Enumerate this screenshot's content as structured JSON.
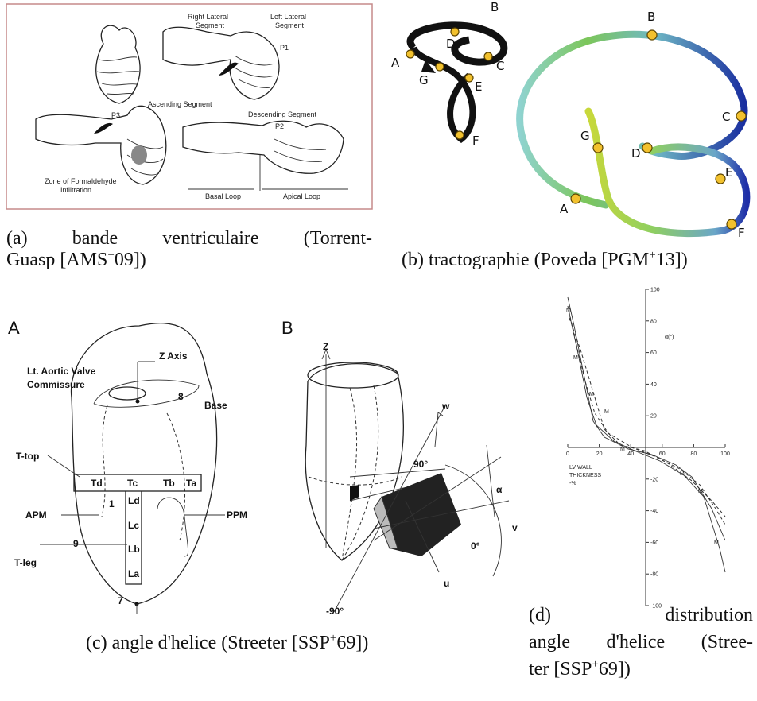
{
  "panel_a": {
    "labels": {
      "right_lateral": [
        "Right Lateral",
        "Segment"
      ],
      "left_lateral": [
        "Left Lateral",
        "Segment"
      ],
      "p1": "P1",
      "p3": "P3",
      "ascending": "Ascending Segment",
      "descending": "Descending Segment",
      "p2": "P2",
      "zone": [
        "Zone of Formaldehyde",
        "Infiltration"
      ],
      "basal_loop": "Basal Loop",
      "apical_loop": "Apical Loop"
    },
    "caption": {
      "line1": "(a) bande ventriculaire (Torrent-",
      "line2": "Guasp [AMS",
      "sup": "+",
      "line2_end": "09])"
    }
  },
  "panel_b": {
    "left_labels": [
      "B",
      "D",
      "A",
      "C",
      "G",
      "E",
      "F"
    ],
    "right_labels": [
      "B",
      "C",
      "G",
      "D",
      "E",
      "A",
      "F"
    ],
    "caption": {
      "text": "(b) tractographie (Poveda [PGM",
      "sup": "+",
      "end": "13])"
    }
  },
  "panel_c": {
    "heart_a": {
      "letter": "A",
      "z_axis": "Z Axis",
      "valve": [
        "Lt. Aortic Valve",
        "Commissure"
      ],
      "n8": "8",
      "base": "Base",
      "t_top": "T-top",
      "td": "Td",
      "tc": "Tc",
      "tb": "Tb",
      "ta": "Ta",
      "ld": "Ld",
      "lc": "Lc",
      "lb": "Lb",
      "la": "La",
      "n1": "1",
      "apm": "APM",
      "ppm": "PPM",
      "n9": "9",
      "t_leg": "T-leg",
      "n7": "7"
    },
    "heart_b": {
      "letter": "B",
      "z": "Z",
      "w": "w",
      "deg90": "90°",
      "alpha": "α",
      "v": "v",
      "deg0": "0°",
      "u": "u",
      "deg_neg90": "-90°"
    },
    "caption": {
      "text": "(c) angle d'helice (Streeter [SSP",
      "sup": "+",
      "end": "69])"
    }
  },
  "panel_d": {
    "y_label": "α(°)",
    "x_label": [
      "LV WALL",
      "THICKNESS",
      "-%"
    ],
    "marker": "M",
    "yticks": [
      100,
      80,
      60,
      40,
      20,
      -20,
      -40,
      -60,
      -80,
      -100
    ],
    "xticks": [
      0,
      20,
      40,
      60,
      80,
      100
    ],
    "caption": {
      "line1": "(d) distribution",
      "line2": "angle d'helice (Stree-",
      "line3": "ter [SSP",
      "sup": "+",
      "line3_end": "69])"
    }
  }
}
